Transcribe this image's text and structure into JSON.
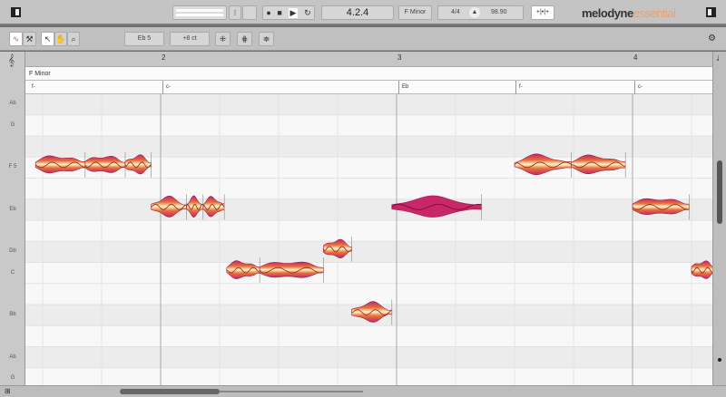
{
  "app": {
    "brand": "melodyne",
    "edition": "essential",
    "brand_color": "#333333",
    "edition_color": "#e8a070"
  },
  "transport": {
    "position": "4.2.4",
    "key": "F Minor",
    "time_signature": "4/4",
    "tempo": "98.90",
    "record_icon": "record-icon",
    "stop_icon": "stop-icon",
    "play_icon": "play-icon",
    "loop_icon": "loop-icon"
  },
  "toolbar": {
    "pitch_value": "Eb 5",
    "cents_value": "+8 ct"
  },
  "ruler": {
    "bars": [
      "2",
      "3",
      "4"
    ]
  },
  "key_lane": {
    "label": "F Minor"
  },
  "chords": [
    "f-",
    "c-",
    "Eb",
    "f-",
    "c-"
  ],
  "piano_keys": [
    "Ab",
    "G",
    "F 5",
    "Eb",
    "Db",
    "C",
    "Bb",
    "Ab",
    "G"
  ],
  "accent_color": "#e05a2a",
  "selected_note_color": "#c2185b",
  "notes": [
    {
      "pitch": "F5",
      "start": 1.47,
      "end": 1.68
    },
    {
      "pitch": "F5",
      "start": 1.68,
      "end": 1.85
    },
    {
      "pitch": "F5",
      "start": 1.85,
      "end": 1.96
    },
    {
      "pitch": "Eb5",
      "start": 1.96,
      "end": 2.11
    },
    {
      "pitch": "Eb5",
      "start": 2.11,
      "end": 2.18
    },
    {
      "pitch": "Eb5",
      "start": 2.18,
      "end": 2.27
    },
    {
      "pitch": "C5",
      "start": 2.28,
      "end": 2.42
    },
    {
      "pitch": "C5",
      "start": 2.42,
      "end": 2.69
    },
    {
      "pitch": "Db5",
      "start": 2.69,
      "end": 2.81
    },
    {
      "pitch": "Bb4",
      "start": 2.81,
      "end": 2.98
    },
    {
      "pitch": "Eb5",
      "start": 2.98,
      "end": 3.36,
      "selected": true
    },
    {
      "pitch": "F5",
      "start": 3.5,
      "end": 3.74
    },
    {
      "pitch": "F5",
      "start": 3.74,
      "end": 3.97
    },
    {
      "pitch": "Eb5",
      "start": 4.0,
      "end": 4.24
    },
    {
      "pitch": "C5",
      "start": 4.25,
      "end": 4.35
    }
  ]
}
